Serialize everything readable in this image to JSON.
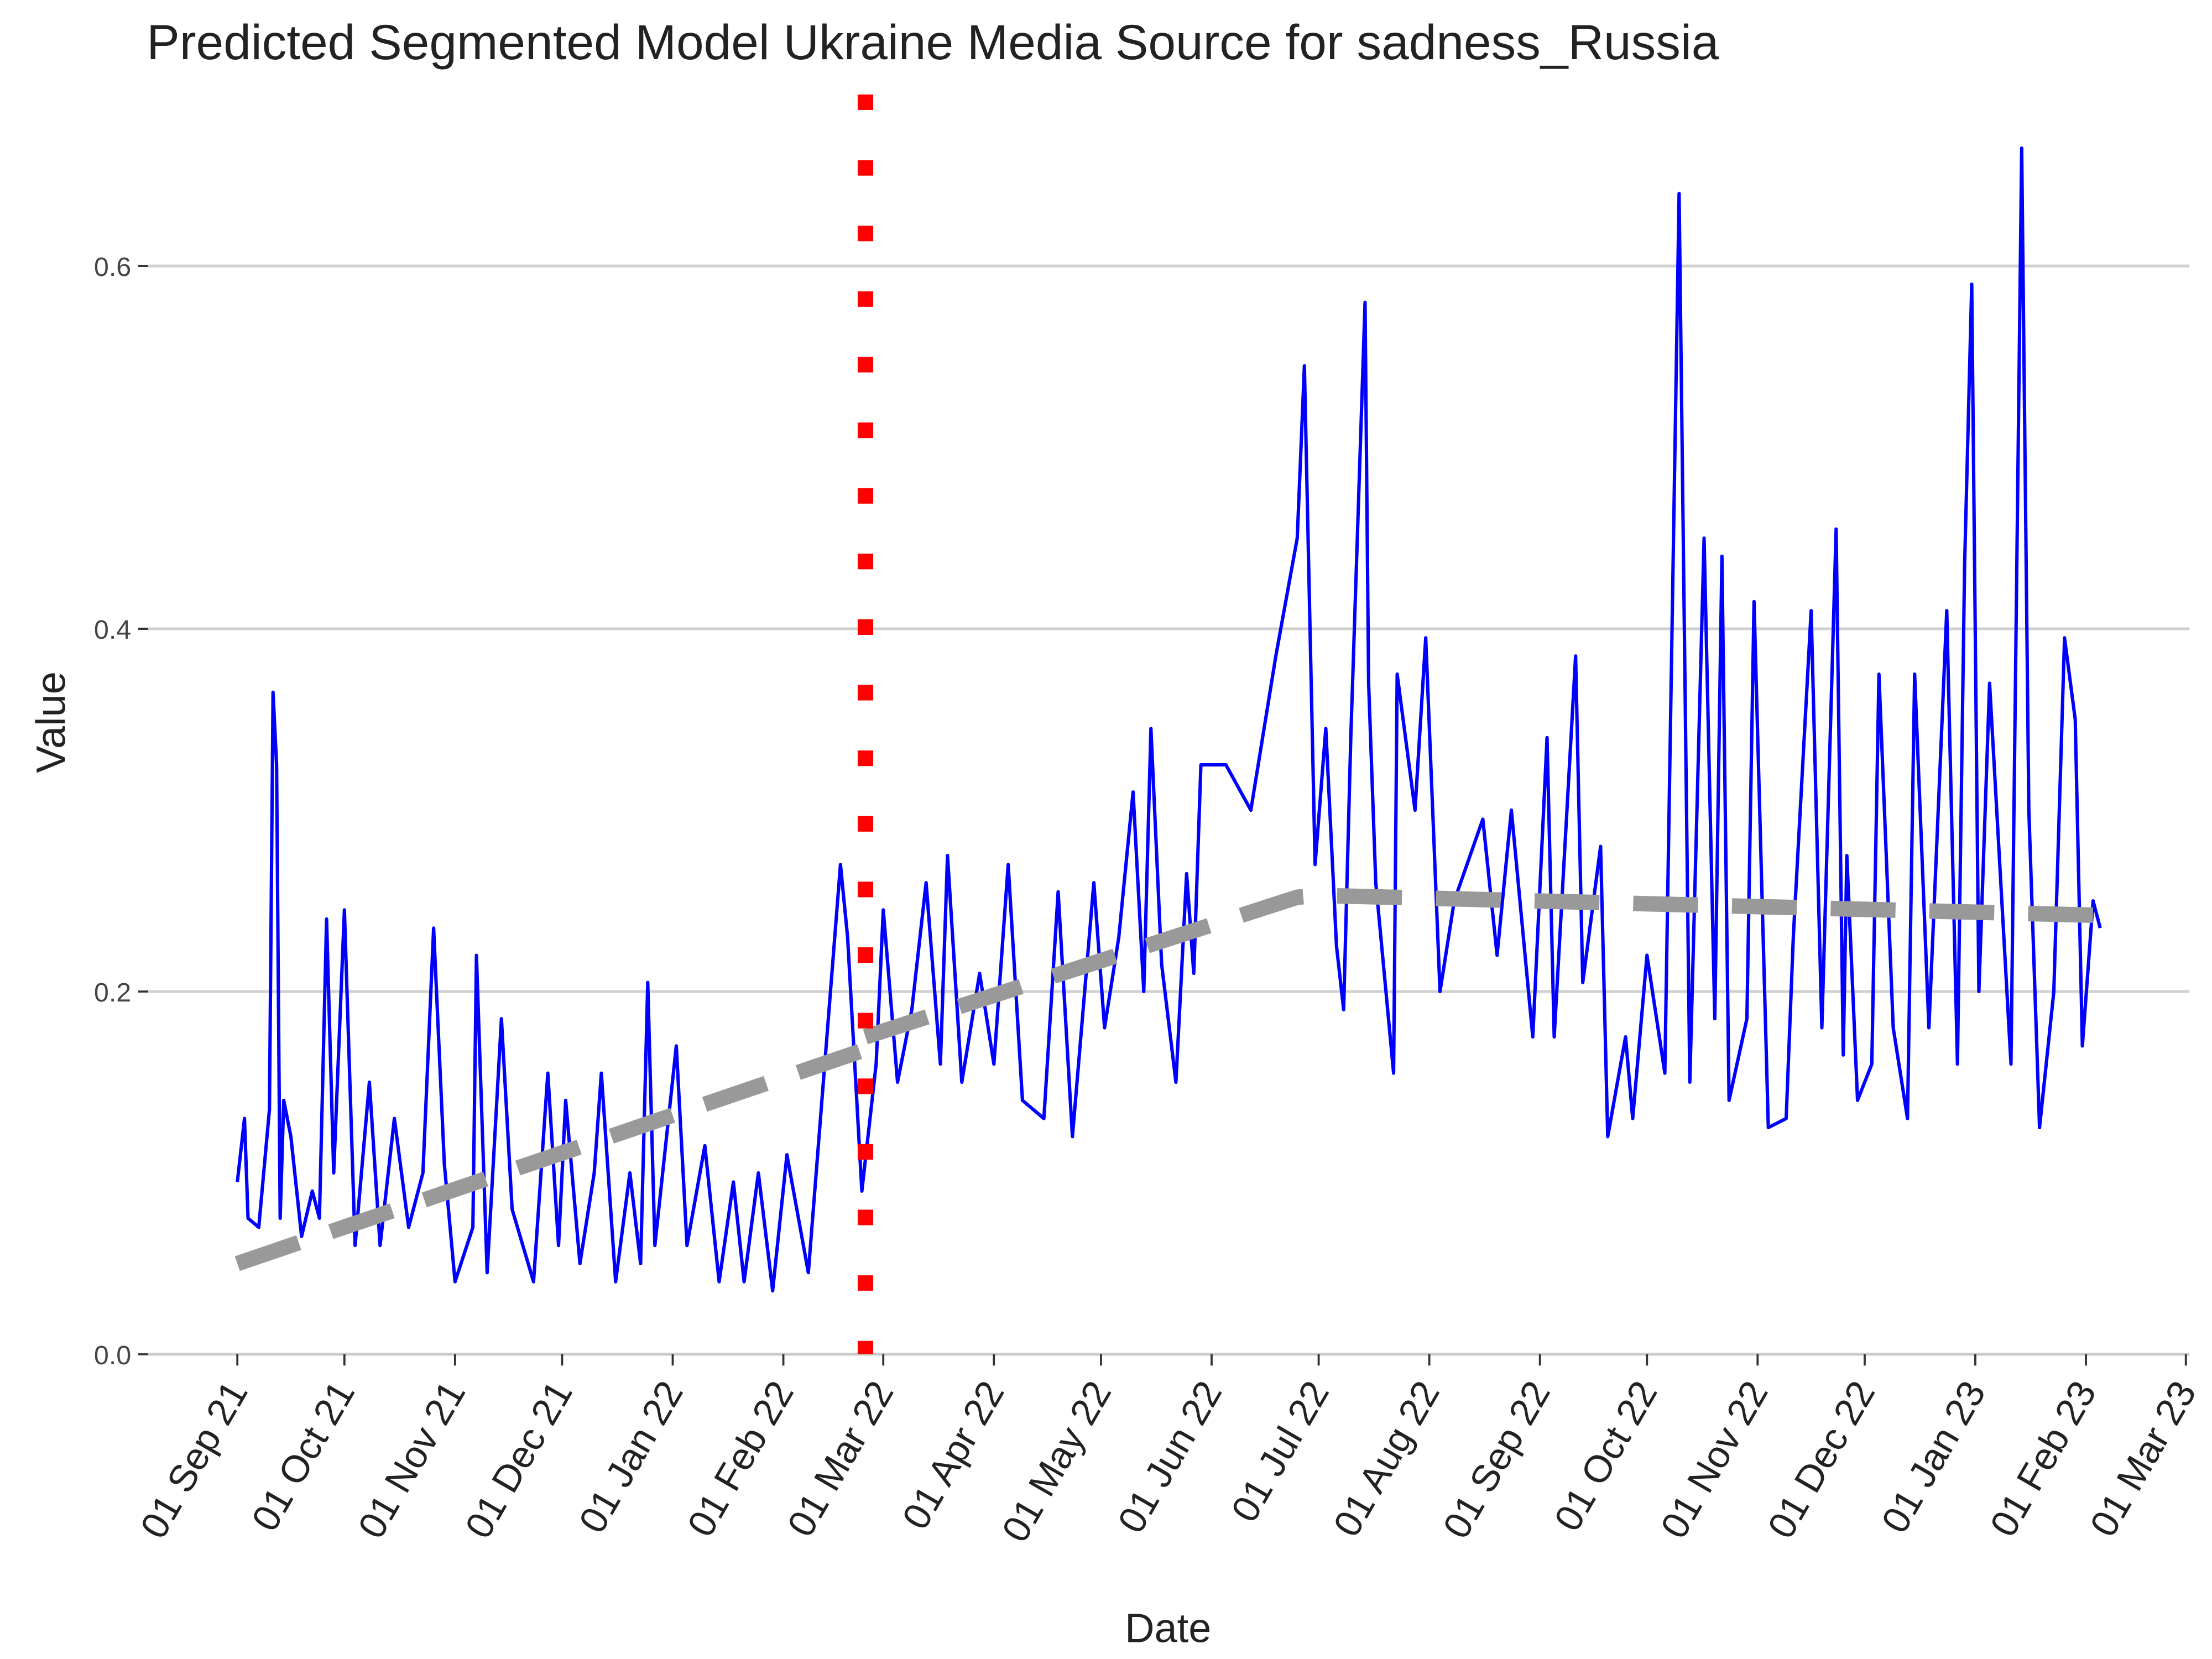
{
  "chart_data": {
    "type": "line",
    "title": "Predicted Segmented Model Ukraine Media Source for sadness_Russia",
    "x_label": "Date",
    "y_label": "Value",
    "xlim": [
      "2021-08-07",
      "2023-03-02"
    ],
    "ylim": [
      0,
      0.7
    ],
    "grid": true,
    "yticks": [
      {
        "value": 0,
        "label": "0.0"
      },
      0.2,
      0.4,
      0.6
    ],
    "xticks": [
      {
        "value": "2021-09-01",
        "label": "01 Sep 21"
      },
      {
        "value": "2021-10-01",
        "label": "01 Oct 21"
      },
      {
        "value": "2021-11-01",
        "label": "01 Nov 21"
      },
      {
        "value": "2021-12-01",
        "label": "01 Dec 21"
      },
      {
        "value": "2022-01-01",
        "label": "01 Jan 22"
      },
      {
        "value": "2022-02-01",
        "label": "01 Feb 22"
      },
      {
        "value": "2022-03-01",
        "label": "01 Mar 22"
      },
      {
        "value": "2022-04-01",
        "label": "01 Apr 22"
      },
      {
        "value": "2022-05-01",
        "label": "01 May 22"
      },
      {
        "value": "2022-06-01",
        "label": "01 Jun 22"
      },
      {
        "value": "2022-07-01",
        "label": "01 Jul 22"
      },
      {
        "value": "2022-08-01",
        "label": "01 Aug 22"
      },
      {
        "value": "2022-09-01",
        "label": "01 Sep 22"
      },
      {
        "value": "2022-10-01",
        "label": "01 Oct 22"
      },
      {
        "value": "2022-11-01",
        "label": "01 Nov 22"
      },
      {
        "value": "2022-12-01",
        "label": "01 Dec 22"
      },
      {
        "value": "2023-01-01",
        "label": "01 Jan 23"
      },
      {
        "value": "2023-02-01",
        "label": "01 Feb 23"
      },
      {
        "value": "2023-03-01",
        "label": "01 Mar 23"
      }
    ],
    "vline": {
      "x": "2022-02-24",
      "color": "#ff0000",
      "style": "dotted"
    },
    "series": [
      {
        "color": "#0000ff",
        "style": "solid",
        "x": [
          "2021-09-01",
          "2021-09-03",
          "2021-09-04",
          "2021-09-07",
          "2021-09-10",
          "2021-09-11",
          "2021-09-12",
          "2021-09-13",
          "2021-09-14",
          "2021-09-16",
          "2021-09-19",
          "2021-09-22",
          "2021-09-24",
          "2021-09-26",
          "2021-09-28",
          "2021-10-01",
          "2021-10-04",
          "2021-10-08",
          "2021-10-11",
          "2021-10-15",
          "2021-10-19",
          "2021-10-23",
          "2021-10-26",
          "2021-10-29",
          "2021-11-01",
          "2021-11-06",
          "2021-11-07",
          "2021-11-10",
          "2021-11-14",
          "2021-11-17",
          "2021-11-23",
          "2021-11-27",
          "2021-11-30",
          "2021-12-02",
          "2021-12-06",
          "2021-12-10",
          "2021-12-12",
          "2021-12-16",
          "2021-12-20",
          "2021-12-23",
          "2021-12-25",
          "2021-12-27",
          "2022-01-02",
          "2022-01-05",
          "2022-01-10",
          "2022-01-14",
          "2022-01-18",
          "2022-01-21",
          "2022-01-25",
          "2022-01-29",
          "2022-02-02",
          "2022-02-08",
          "2022-02-17",
          "2022-02-19",
          "2022-02-23",
          "2022-02-27",
          "2022-03-01",
          "2022-03-05",
          "2022-03-09",
          "2022-03-13",
          "2022-03-17",
          "2022-03-19",
          "2022-03-23",
          "2022-03-28",
          "2022-04-01",
          "2022-04-05",
          "2022-04-09",
          "2022-04-15",
          "2022-04-19",
          "2022-04-23",
          "2022-04-29",
          "2022-05-02",
          "2022-05-06",
          "2022-05-10",
          "2022-05-13",
          "2022-05-15",
          "2022-05-18",
          "2022-05-22",
          "2022-05-25",
          "2022-05-27",
          "2022-05-29",
          "2022-06-05",
          "2022-06-12",
          "2022-06-19",
          "2022-06-25",
          "2022-06-27",
          "2022-06-30",
          "2022-07-03",
          "2022-07-06",
          "2022-07-08",
          "2022-07-10",
          "2022-07-14",
          "2022-07-15",
          "2022-07-17",
          "2022-07-22",
          "2022-07-23",
          "2022-07-28",
          "2022-07-31",
          "2022-08-04",
          "2022-08-08",
          "2022-08-16",
          "2022-08-20",
          "2022-08-24",
          "2022-08-30",
          "2022-09-03",
          "2022-09-05",
          "2022-09-11",
          "2022-09-13",
          "2022-09-18",
          "2022-09-20",
          "2022-09-25",
          "2022-09-27",
          "2022-10-01",
          "2022-10-06",
          "2022-10-10",
          "2022-10-13",
          "2022-10-17",
          "2022-10-20",
          "2022-10-22",
          "2022-10-24",
          "2022-10-29",
          "2022-10-31",
          "2022-11-04",
          "2022-11-09",
          "2022-11-11",
          "2022-11-16",
          "2022-11-19",
          "2022-11-23",
          "2022-11-25",
          "2022-11-26",
          "2022-11-29",
          "2022-12-03",
          "2022-12-05",
          "2022-12-09",
          "2022-12-13",
          "2022-12-15",
          "2022-12-19",
          "2022-12-24",
          "2022-12-27",
          "2022-12-29",
          "2022-12-31",
          "2023-01-02",
          "2023-01-05",
          "2023-01-11",
          "2023-01-14",
          "2023-01-16",
          "2023-01-19",
          "2023-01-23",
          "2023-01-26",
          "2023-01-29",
          "2023-01-31",
          "2023-02-03",
          "2023-02-05"
        ],
        "values": [
          0.095,
          0.13,
          0.075,
          0.07,
          0.135,
          0.365,
          0.325,
          0.075,
          0.14,
          0.12,
          0.065,
          0.09,
          0.075,
          0.24,
          0.1,
          0.245,
          0.06,
          0.15,
          0.06,
          0.13,
          0.07,
          0.1,
          0.235,
          0.105,
          0.04,
          0.07,
          0.22,
          0.045,
          0.185,
          0.08,
          0.04,
          0.155,
          0.06,
          0.14,
          0.05,
          0.1,
          0.155,
          0.04,
          0.1,
          0.05,
          0.205,
          0.06,
          0.17,
          0.06,
          0.115,
          0.04,
          0.095,
          0.04,
          0.1,
          0.035,
          0.11,
          0.045,
          0.27,
          0.23,
          0.09,
          0.16,
          0.245,
          0.15,
          0.19,
          0.26,
          0.16,
          0.275,
          0.15,
          0.21,
          0.16,
          0.27,
          0.14,
          0.13,
          0.255,
          0.12,
          0.26,
          0.18,
          0.23,
          0.31,
          0.2,
          0.345,
          0.215,
          0.15,
          0.265,
          0.21,
          0.325,
          0.325,
          0.3,
          0.385,
          0.45,
          0.545,
          0.27,
          0.345,
          0.225,
          0.19,
          0.34,
          0.58,
          0.37,
          0.26,
          0.155,
          0.375,
          0.3,
          0.395,
          0.2,
          0.25,
          0.295,
          0.22,
          0.3,
          0.175,
          0.34,
          0.175,
          0.385,
          0.205,
          0.28,
          0.12,
          0.175,
          0.13,
          0.22,
          0.155,
          0.64,
          0.15,
          0.45,
          0.185,
          0.44,
          0.14,
          0.185,
          0.415,
          0.125,
          0.13,
          0.23,
          0.41,
          0.18,
          0.455,
          0.165,
          0.275,
          0.14,
          0.16,
          0.375,
          0.18,
          0.13,
          0.375,
          0.18,
          0.41,
          0.16,
          0.435,
          0.59,
          0.2,
          0.37,
          0.16,
          0.665,
          0.3,
          0.125,
          0.2,
          0.395,
          0.35,
          0.17,
          0.25,
          0.235
        ]
      },
      {
        "color": "#999999",
        "style": "dashed",
        "x": [
          "2021-09-01",
          "2022-02-24"
        ],
        "values": [
          0.05,
          0.168
        ]
      },
      {
        "color": "#999999",
        "style": "dashed",
        "x": [
          "2022-02-24",
          "2022-06-25",
          "2022-07-01",
          "2023-02-05"
        ],
        "values": [
          0.175,
          0.252,
          0.253,
          0.242
        ]
      }
    ]
  }
}
